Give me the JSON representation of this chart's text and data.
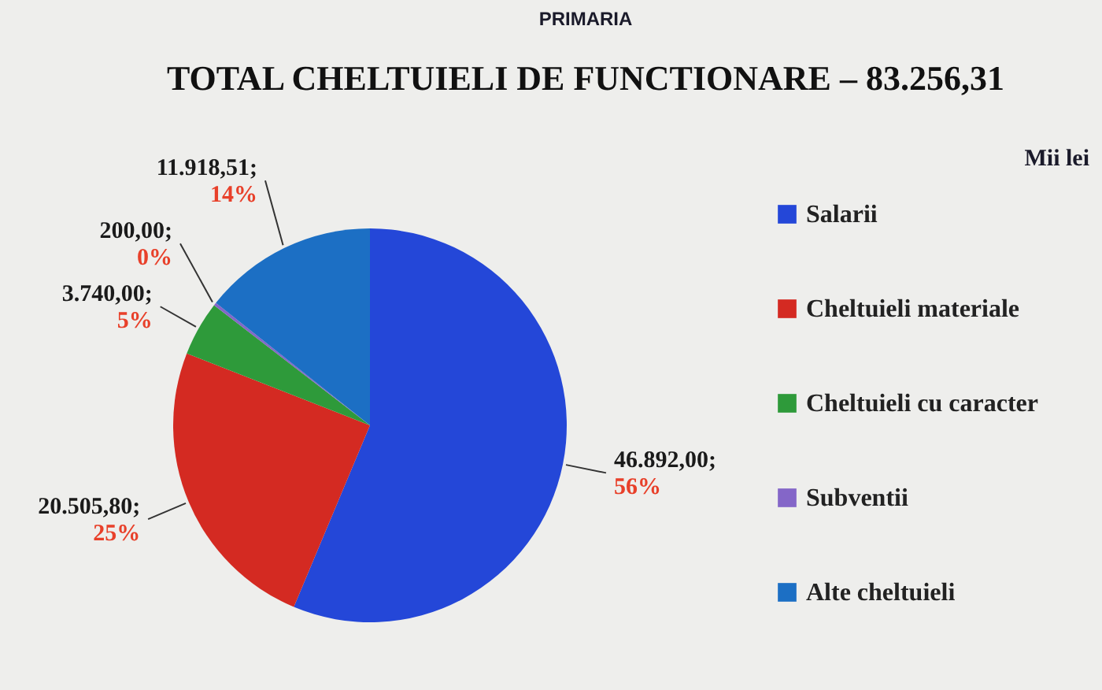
{
  "chart_data": {
    "type": "pie",
    "title": "TOTAL CHELTUIELI DE FUNCTIONARE – 83.256,31",
    "categories": [
      "Salarii",
      "Cheltuieli materiale",
      "Cheltuieli cu caracter",
      "Subventii",
      "Alte cheltuieli"
    ],
    "values": [
      46892.0,
      20505.8,
      3740.0,
      200.0,
      11918.51
    ],
    "colors": [
      "#2447d8",
      "#d42a22",
      "#2e9a3a",
      "#8466c8",
      "#1c6fc4"
    ],
    "value_labels": [
      "46.892,00;\n56%",
      "20.505,80;\n25%",
      "3.740,00;\n5%",
      "200,00;\n0%",
      "11.918,51;\n14%"
    ],
    "legend": "right",
    "annotations": [
      "PRIMARIA",
      "Mii lei"
    ]
  }
}
